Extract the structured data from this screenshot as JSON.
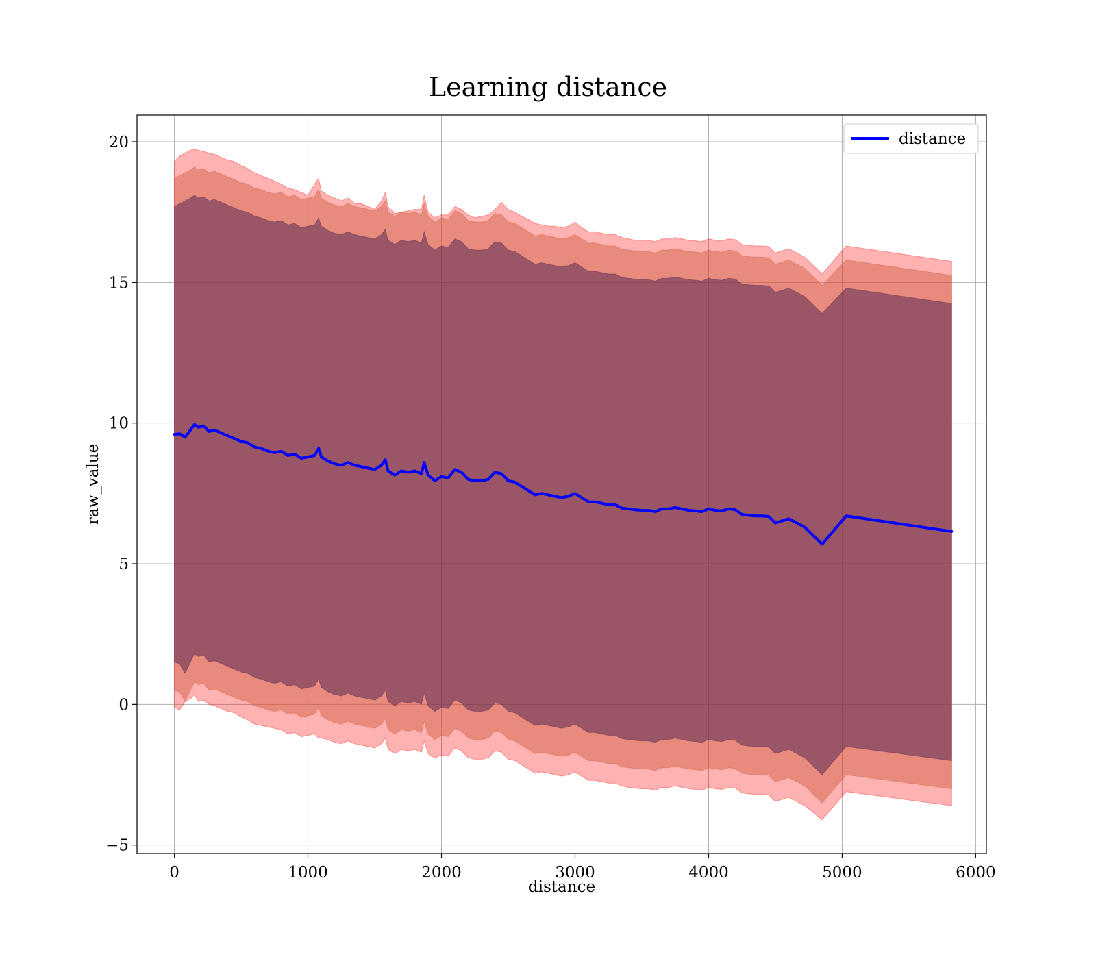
{
  "chart_data": {
    "type": "area",
    "title": "Learning distance",
    "xlabel": "distance",
    "ylabel": "raw_value",
    "xlim": [
      -280,
      6080
    ],
    "ylim": [
      -5.3,
      20.95
    ],
    "xticks": [
      0,
      1000,
      2000,
      3000,
      4000,
      5000,
      6000
    ],
    "yticks": [
      -5,
      0,
      5,
      10,
      15,
      20
    ],
    "ytick_labels": [
      "−5",
      "0",
      "5",
      "10",
      "15",
      "20"
    ],
    "grid": true,
    "legend": {
      "placement": "top-right",
      "entries": [
        "distance"
      ]
    },
    "colors": {
      "line": "#0000ff",
      "band_outer": "#ff0000",
      "band_middle": "#cd5c3c",
      "band_inner": "#5a2a55"
    },
    "series": [
      {
        "name": "distance",
        "x": [
          0,
          40,
          80,
          120,
          150,
          180,
          220,
          260,
          300,
          350,
          400,
          450,
          500,
          550,
          600,
          650,
          700,
          750,
          800,
          850,
          900,
          950,
          1000,
          1050,
          1080,
          1100,
          1150,
          1200,
          1250,
          1300,
          1350,
          1400,
          1450,
          1500,
          1550,
          1580,
          1600,
          1650,
          1700,
          1750,
          1800,
          1850,
          1870,
          1900,
          1950,
          2000,
          2050,
          2100,
          2150,
          2200,
          2250,
          2300,
          2350,
          2400,
          2450,
          2500,
          2550,
          2600,
          2650,
          2700,
          2750,
          2800,
          2850,
          2900,
          2950,
          3000,
          3050,
          3100,
          3150,
          3200,
          3250,
          3300,
          3350,
          3400,
          3450,
          3500,
          3550,
          3600,
          3650,
          3700,
          3750,
          3800,
          3850,
          3900,
          3950,
          4000,
          4050,
          4100,
          4150,
          4200,
          4250,
          4300,
          4350,
          4400,
          4450,
          4500,
          4600,
          4720,
          4850,
          5030,
          5820
        ],
        "values": [
          9.6,
          9.62,
          9.5,
          9.75,
          9.95,
          9.85,
          9.9,
          9.7,
          9.75,
          9.65,
          9.55,
          9.45,
          9.35,
          9.3,
          9.15,
          9.1,
          9.0,
          8.95,
          9.0,
          8.85,
          8.9,
          8.75,
          8.8,
          8.85,
          9.1,
          8.8,
          8.65,
          8.55,
          8.5,
          8.6,
          8.5,
          8.45,
          8.4,
          8.35,
          8.5,
          8.7,
          8.3,
          8.15,
          8.3,
          8.25,
          8.3,
          8.2,
          8.6,
          8.15,
          7.95,
          8.1,
          8.05,
          8.35,
          8.25,
          8.0,
          7.95,
          7.95,
          8.0,
          8.25,
          8.2,
          7.95,
          7.9,
          7.75,
          7.6,
          7.45,
          7.5,
          7.45,
          7.4,
          7.35,
          7.4,
          7.5,
          7.35,
          7.2,
          7.2,
          7.15,
          7.1,
          7.1,
          6.98,
          6.95,
          6.92,
          6.9,
          6.9,
          6.85,
          6.95,
          6.95,
          7.0,
          6.95,
          6.9,
          6.88,
          6.85,
          6.95,
          6.9,
          6.88,
          6.95,
          6.92,
          6.75,
          6.72,
          6.7,
          6.7,
          6.68,
          6.45,
          6.6,
          6.3,
          5.7,
          6.7,
          6.15
        ],
        "band_outer_upper": [
          19.3,
          19.5,
          19.6,
          19.7,
          19.75,
          19.7,
          19.65,
          19.6,
          19.55,
          19.45,
          19.35,
          19.3,
          19.15,
          19.05,
          18.9,
          18.8,
          18.7,
          18.6,
          18.5,
          18.35,
          18.3,
          18.2,
          18.1,
          18.5,
          18.7,
          18.25,
          18.1,
          18.0,
          17.9,
          18.0,
          17.8,
          17.8,
          17.7,
          17.6,
          17.9,
          18.2,
          17.7,
          17.45,
          17.5,
          17.55,
          17.6,
          17.6,
          18.1,
          17.5,
          17.3,
          17.4,
          17.4,
          17.7,
          17.6,
          17.4,
          17.3,
          17.35,
          17.4,
          17.6,
          17.85,
          17.6,
          17.5,
          17.35,
          17.25,
          17.1,
          17.05,
          17.0,
          17.0,
          16.95,
          17.0,
          17.15,
          16.95,
          16.8,
          16.8,
          16.75,
          16.7,
          16.7,
          16.6,
          16.55,
          16.5,
          16.5,
          16.5,
          16.45,
          16.55,
          16.55,
          16.6,
          16.55,
          16.5,
          16.48,
          16.45,
          16.55,
          16.5,
          16.48,
          16.55,
          16.52,
          16.35,
          16.32,
          16.3,
          16.3,
          16.28,
          16.05,
          16.2,
          15.9,
          15.3,
          16.3,
          15.75
        ],
        "band_outer_lower": [
          -0.1,
          -0.2,
          0.1,
          0.2,
          0.35,
          0.1,
          0.15,
          0.0,
          -0.05,
          -0.15,
          -0.25,
          -0.3,
          -0.45,
          -0.55,
          -0.7,
          -0.75,
          -0.8,
          -0.85,
          -0.9,
          -1.05,
          -1.0,
          -1.15,
          -1.1,
          -1.05,
          -1.2,
          -1.2,
          -1.25,
          -1.35,
          -1.4,
          -1.3,
          -1.4,
          -1.45,
          -1.5,
          -1.55,
          -1.4,
          -1.2,
          -1.6,
          -1.75,
          -1.6,
          -1.65,
          -1.6,
          -1.7,
          -1.3,
          -1.75,
          -1.9,
          -1.8,
          -1.85,
          -1.55,
          -1.65,
          -1.9,
          -1.95,
          -1.95,
          -1.9,
          -1.65,
          -1.7,
          -1.95,
          -2.0,
          -2.15,
          -2.3,
          -2.45,
          -2.4,
          -2.45,
          -2.5,
          -2.55,
          -2.5,
          -2.4,
          -2.55,
          -2.7,
          -2.7,
          -2.75,
          -2.8,
          -2.8,
          -2.9,
          -2.95,
          -2.98,
          -3.0,
          -3.0,
          -3.05,
          -2.95,
          -2.95,
          -2.9,
          -2.95,
          -3.0,
          -3.02,
          -3.05,
          -2.95,
          -3.0,
          -3.02,
          -2.95,
          -2.98,
          -3.15,
          -3.18,
          -3.2,
          -3.2,
          -3.22,
          -3.45,
          -3.3,
          -3.6,
          -4.1,
          -3.1,
          -3.6
        ],
        "band_middle_upper": [
          18.7,
          18.8,
          18.9,
          19.0,
          19.1,
          19.0,
          19.05,
          18.9,
          18.95,
          18.85,
          18.75,
          18.65,
          18.55,
          18.5,
          18.35,
          18.3,
          18.2,
          18.15,
          18.2,
          18.05,
          18.1,
          17.95,
          18.0,
          18.05,
          18.3,
          18.0,
          17.85,
          17.75,
          17.7,
          17.8,
          17.7,
          17.65,
          17.6,
          17.55,
          17.7,
          17.9,
          17.5,
          17.35,
          17.5,
          17.45,
          17.5,
          17.4,
          17.8,
          17.35,
          17.15,
          17.3,
          17.25,
          17.55,
          17.45,
          17.2,
          17.15,
          17.15,
          17.2,
          17.45,
          17.4,
          17.15,
          17.1,
          16.95,
          16.8,
          16.65,
          16.7,
          16.65,
          16.6,
          16.55,
          16.6,
          16.7,
          16.55,
          16.4,
          16.4,
          16.35,
          16.3,
          16.3,
          16.18,
          16.15,
          16.12,
          16.1,
          16.1,
          16.05,
          16.15,
          16.15,
          16.2,
          16.15,
          16.1,
          16.08,
          16.05,
          16.15,
          16.1,
          16.08,
          16.15,
          16.12,
          15.95,
          15.92,
          15.9,
          15.9,
          15.88,
          15.65,
          15.8,
          15.5,
          14.9,
          15.8,
          15.25
        ],
        "band_middle_lower": [
          0.5,
          0.44,
          0.1,
          0.5,
          0.8,
          0.7,
          0.75,
          0.5,
          0.55,
          0.45,
          0.35,
          0.25,
          0.15,
          0.1,
          -0.05,
          -0.1,
          -0.2,
          -0.25,
          -0.2,
          -0.35,
          -0.3,
          -0.45,
          -0.4,
          -0.35,
          -0.1,
          -0.4,
          -0.55,
          -0.65,
          -0.7,
          -0.6,
          -0.7,
          -0.75,
          -0.8,
          -0.85,
          -0.7,
          -0.5,
          -0.9,
          -1.05,
          -0.9,
          -0.95,
          -0.9,
          -1.0,
          -0.6,
          -1.05,
          -1.25,
          -1.1,
          -1.15,
          -0.85,
          -0.95,
          -1.2,
          -1.25,
          -1.25,
          -1.2,
          -0.95,
          -1.0,
          -1.25,
          -1.3,
          -1.45,
          -1.6,
          -1.75,
          -1.7,
          -1.75,
          -1.8,
          -1.85,
          -1.8,
          -1.7,
          -1.85,
          -2.0,
          -2.0,
          -2.05,
          -2.1,
          -2.1,
          -2.22,
          -2.25,
          -2.28,
          -2.3,
          -2.3,
          -2.35,
          -2.25,
          -2.25,
          -2.2,
          -2.25,
          -2.3,
          -2.32,
          -2.35,
          -2.25,
          -2.3,
          -2.32,
          -2.25,
          -2.28,
          -2.45,
          -2.48,
          -2.5,
          -2.5,
          -2.52,
          -2.75,
          -2.6,
          -2.9,
          -3.5,
          -2.5,
          -3.0
        ],
        "band_inner_upper": [
          17.7,
          17.8,
          17.9,
          18.0,
          18.1,
          18.0,
          18.05,
          17.9,
          17.95,
          17.85,
          17.75,
          17.65,
          17.55,
          17.5,
          17.35,
          17.3,
          17.2,
          17.15,
          17.2,
          17.05,
          17.1,
          16.95,
          17.0,
          17.05,
          17.3,
          17.0,
          16.85,
          16.75,
          16.7,
          16.8,
          16.7,
          16.65,
          16.6,
          16.55,
          16.7,
          16.9,
          16.5,
          16.35,
          16.5,
          16.45,
          16.5,
          16.4,
          16.8,
          16.35,
          16.15,
          16.3,
          16.25,
          16.55,
          16.45,
          16.2,
          16.15,
          16.15,
          16.2,
          16.45,
          16.4,
          16.15,
          16.1,
          15.95,
          15.8,
          15.65,
          15.7,
          15.65,
          15.6,
          15.55,
          15.6,
          15.7,
          15.55,
          15.4,
          15.4,
          15.35,
          15.3,
          15.3,
          15.18,
          15.15,
          15.12,
          15.1,
          15.1,
          15.05,
          15.15,
          15.15,
          15.2,
          15.15,
          15.1,
          15.08,
          15.05,
          15.15,
          15.1,
          15.08,
          15.15,
          15.12,
          14.95,
          14.92,
          14.9,
          14.9,
          14.88,
          14.65,
          14.8,
          14.5,
          13.9,
          14.8,
          14.25
        ],
        "band_inner_lower": [
          1.5,
          1.44,
          1.1,
          1.5,
          1.8,
          1.7,
          1.75,
          1.5,
          1.55,
          1.45,
          1.35,
          1.25,
          1.15,
          1.1,
          0.95,
          0.9,
          0.8,
          0.75,
          0.8,
          0.65,
          0.7,
          0.55,
          0.6,
          0.65,
          0.9,
          0.6,
          0.45,
          0.35,
          0.3,
          0.4,
          0.3,
          0.25,
          0.2,
          0.15,
          0.3,
          0.5,
          0.1,
          -0.05,
          0.1,
          0.05,
          0.1,
          0.0,
          0.4,
          -0.05,
          -0.25,
          -0.1,
          -0.15,
          0.15,
          0.05,
          -0.2,
          -0.25,
          -0.25,
          -0.2,
          0.05,
          0.0,
          -0.25,
          -0.3,
          -0.45,
          -0.6,
          -0.75,
          -0.7,
          -0.75,
          -0.8,
          -0.85,
          -0.8,
          -0.7,
          -0.85,
          -1.0,
          -1.0,
          -1.05,
          -1.1,
          -1.1,
          -1.22,
          -1.25,
          -1.28,
          -1.3,
          -1.3,
          -1.35,
          -1.25,
          -1.25,
          -1.2,
          -1.25,
          -1.3,
          -1.32,
          -1.35,
          -1.25,
          -1.3,
          -1.32,
          -1.25,
          -1.28,
          -1.45,
          -1.48,
          -1.5,
          -1.5,
          -1.52,
          -1.75,
          -1.6,
          -1.9,
          -2.5,
          -1.5,
          -2.0
        ]
      }
    ]
  }
}
